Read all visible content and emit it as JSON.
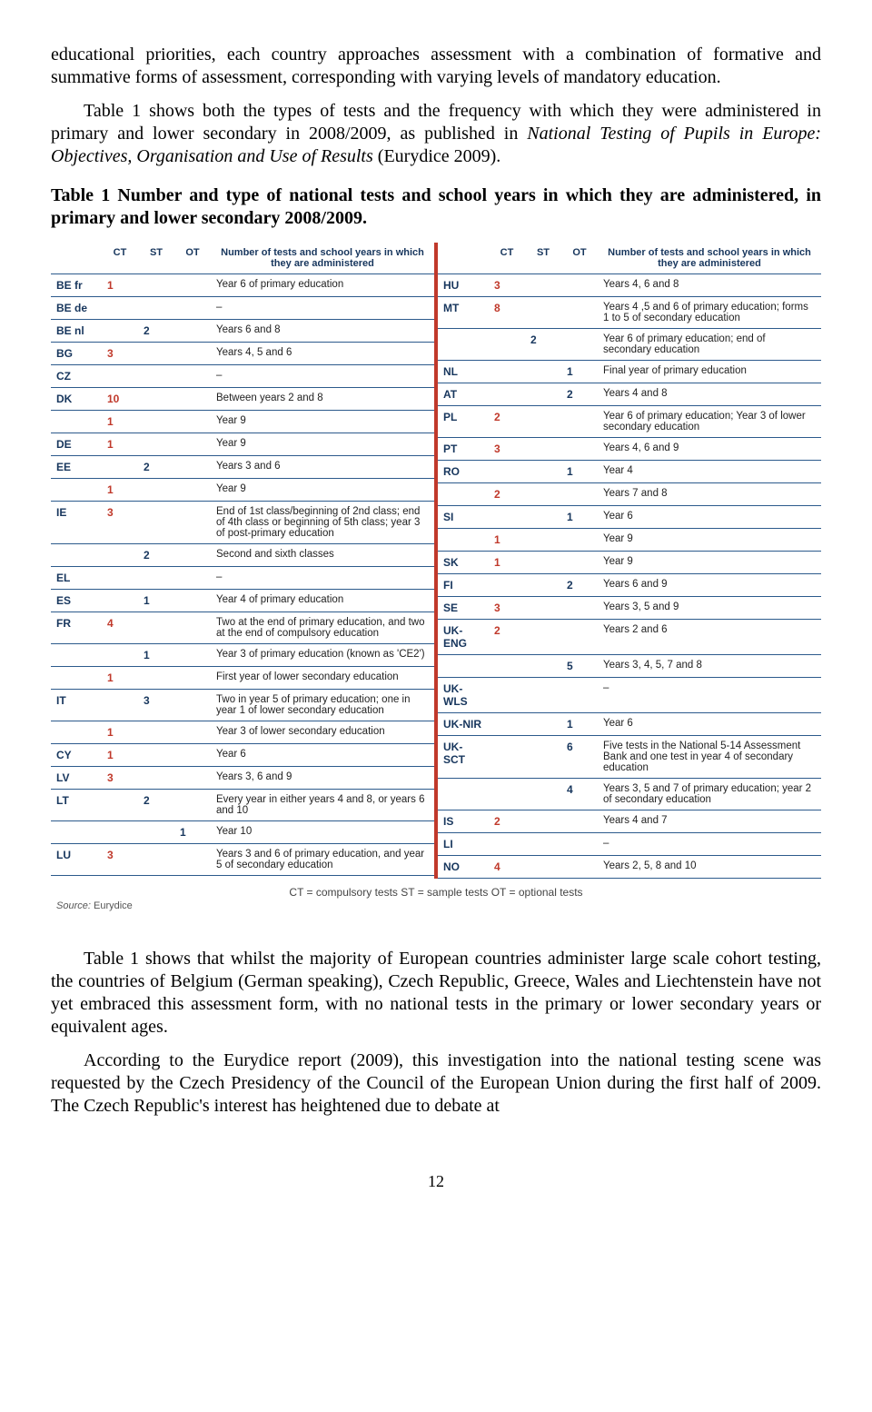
{
  "intro": {
    "p1": "educational priorities, each country approaches assessment with a combination of formative and summative forms of assessment, corresponding with varying levels of mandatory education.",
    "p2_a": "Table 1 shows both the types of tests and the frequency with which they were administered in primary and lower secondary in 2008/2009, as published in ",
    "p2_i": "National Testing of Pupils in Europe: Objectives, Organisation and Use of Results",
    "p2_b": " (Eurydice 2009)."
  },
  "caption": "Table 1 Number and type of national tests and school years in which they are administered, in primary and lower secondary 2008/2009.",
  "headers": {
    "ct": "CT",
    "st": "ST",
    "ot": "OT",
    "num": "Number of tests and school years in which they are administered"
  },
  "legend": "CT = compulsory tests          ST = sample tests    OT = optional tests",
  "source_label": "Source:",
  "source_val": "Eurydice",
  "left": [
    {
      "cc": "BE fr",
      "ct": "1",
      "st": "",
      "ot": "",
      "desc": "Year 6 of primary education"
    },
    {
      "cc": "BE de",
      "ct": "",
      "st": "",
      "ot": "",
      "desc": "–"
    },
    {
      "cc": "BE nl",
      "ct": "",
      "st": "2",
      "ot": "",
      "desc": "Years 6 and 8"
    },
    {
      "cc": "BG",
      "ct": "3",
      "st": "",
      "ot": "",
      "desc": "Years 4, 5 and 6"
    },
    {
      "cc": "CZ",
      "ct": "",
      "st": "",
      "ot": "",
      "desc": "–"
    },
    {
      "cc": "DK",
      "ct": "10",
      "st": "",
      "ot": "",
      "desc": "Between years 2 and 8"
    },
    {
      "cc": "",
      "ct": "1",
      "st": "",
      "ot": "",
      "desc": "Year 9"
    },
    {
      "cc": "DE",
      "ct": "1",
      "st": "",
      "ot": "",
      "desc": "Year 9"
    },
    {
      "cc": "EE",
      "ct": "",
      "st": "2",
      "ot": "",
      "desc": "Years 3 and 6"
    },
    {
      "cc": "",
      "ct": "1",
      "st": "",
      "ot": "",
      "desc": "Year 9"
    },
    {
      "cc": "IE",
      "ct": "3",
      "st": "",
      "ot": "",
      "desc": "End of 1st class/beginning of 2nd class; end of 4th class or beginning of 5th class; year 3 of post-primary education"
    },
    {
      "cc": "",
      "ct": "",
      "st": "2",
      "ot": "",
      "desc": "Second and sixth classes"
    },
    {
      "cc": "EL",
      "ct": "",
      "st": "",
      "ot": "",
      "desc": "–"
    },
    {
      "cc": "ES",
      "ct": "",
      "st": "1",
      "ot": "",
      "desc": "Year 4 of primary education"
    },
    {
      "cc": "FR",
      "ct": "4",
      "st": "",
      "ot": "",
      "desc": "Two at the end of primary education, and two at the end of compulsory education"
    },
    {
      "cc": "",
      "ct": "",
      "st": "1",
      "ot": "",
      "desc": "Year 3 of primary education (known as 'CE2')"
    },
    {
      "cc": "",
      "ct": "1",
      "st": "",
      "ot": "",
      "desc": "First year of lower secondary education"
    },
    {
      "cc": "IT",
      "ct": "",
      "st": "3",
      "ot": "",
      "desc": "Two in year 5 of primary education; one in year 1 of lower secondary education"
    },
    {
      "cc": "",
      "ct": "1",
      "st": "",
      "ot": "",
      "desc": "Year 3 of lower secondary education"
    },
    {
      "cc": "CY",
      "ct": "1",
      "st": "",
      "ot": "",
      "desc": "Year 6"
    },
    {
      "cc": "LV",
      "ct": "3",
      "st": "",
      "ot": "",
      "desc": "Years 3, 6 and 9"
    },
    {
      "cc": "LT",
      "ct": "",
      "st": "2",
      "ot": "",
      "desc": "Every year in either years 4 and 8, or years 6 and 10"
    },
    {
      "cc": "",
      "ct": "",
      "st": "",
      "ot": "1",
      "desc": "Year 10"
    },
    {
      "cc": "LU",
      "ct": "3",
      "st": "",
      "ot": "",
      "desc": "Years 3 and 6 of primary education, and year 5 of secondary education"
    }
  ],
  "right": [
    {
      "cc": "HU",
      "ct": "3",
      "st": "",
      "ot": "",
      "desc": "Years 4, 6 and 8"
    },
    {
      "cc": "MT",
      "ct": "8",
      "st": "",
      "ot": "",
      "desc": "Years 4 ,5 and 6 of primary education; forms 1 to 5 of secondary education"
    },
    {
      "cc": "",
      "ct": "",
      "st": "2",
      "ot": "",
      "desc": "Year 6 of primary education; end of secondary education"
    },
    {
      "cc": "NL",
      "ct": "",
      "st": "",
      "ot": "1",
      "desc": "Final year of primary education"
    },
    {
      "cc": "AT",
      "ct": "",
      "st": "",
      "ot": "2",
      "desc": "Years 4 and 8"
    },
    {
      "cc": "PL",
      "ct": "2",
      "st": "",
      "ot": "",
      "desc": "Year 6 of primary education; Year 3 of lower secondary education"
    },
    {
      "cc": "PT",
      "ct": "3",
      "st": "",
      "ot": "",
      "desc": "Years 4, 6 and 9"
    },
    {
      "cc": "RO",
      "ct": "",
      "st": "",
      "ot": "1",
      "desc": "Year 4"
    },
    {
      "cc": "",
      "ct": "2",
      "st": "",
      "ot": "",
      "desc": "Years 7 and 8"
    },
    {
      "cc": "SI",
      "ct": "",
      "st": "",
      "ot": "1",
      "desc": "Year 6"
    },
    {
      "cc": "",
      "ct": "1",
      "st": "",
      "ot": "",
      "desc": "Year 9"
    },
    {
      "cc": "SK",
      "ct": "1",
      "st": "",
      "ot": "",
      "desc": "Year 9"
    },
    {
      "cc": "FI",
      "ct": "",
      "st": "",
      "ot": "2",
      "desc": "Years 6 and 9"
    },
    {
      "cc": "SE",
      "ct": "3",
      "st": "",
      "ot": "",
      "desc": "Years 3, 5 and 9"
    },
    {
      "cc": "UK-ENG",
      "ct": "2",
      "st": "",
      "ot": "",
      "desc": "Years 2 and 6"
    },
    {
      "cc": "",
      "ct": "",
      "st": "",
      "ot": "5",
      "desc": "Years 3, 4, 5, 7 and 8"
    },
    {
      "cc": "UK-WLS",
      "ct": "",
      "st": "",
      "ot": "",
      "desc": "–"
    },
    {
      "cc": "UK-NIR",
      "ct": "",
      "st": "",
      "ot": "1",
      "desc": "Year 6"
    },
    {
      "cc": "UK-SCT",
      "ct": "",
      "st": "",
      "ot": "6",
      "desc": "Five tests in the National 5-14 Assessment Bank and one test in year 4 of secondary education"
    },
    {
      "cc": "",
      "ct": "",
      "st": "",
      "ot": "4",
      "desc": "Years 3, 5 and 7 of primary education; year 2 of secondary education"
    },
    {
      "cc": "IS",
      "ct": "2",
      "st": "",
      "ot": "",
      "desc": "Years 4 and 7"
    },
    {
      "cc": "LI",
      "ct": "",
      "st": "",
      "ot": "",
      "desc": "–"
    },
    {
      "cc": "NO",
      "ct": "4",
      "st": "",
      "ot": "",
      "desc": "Years 2, 5, 8 and 10"
    }
  ],
  "outro": {
    "p1": "Table 1 shows that whilst the majority of European countries administer large scale cohort testing, the countries of Belgium (German speaking), Czech Republic, Greece, Wales and Liechtenstein have not yet embraced this assessment form, with no national tests in the primary or lower secondary years or equivalent ages.",
    "p2": "According to the Eurydice report (2009), this investigation into the national testing scene was requested by the Czech Presidency of the Council of the European Union during the first half of 2009. The Czech Republic's interest has heightened due to debate at"
  },
  "page": "12"
}
